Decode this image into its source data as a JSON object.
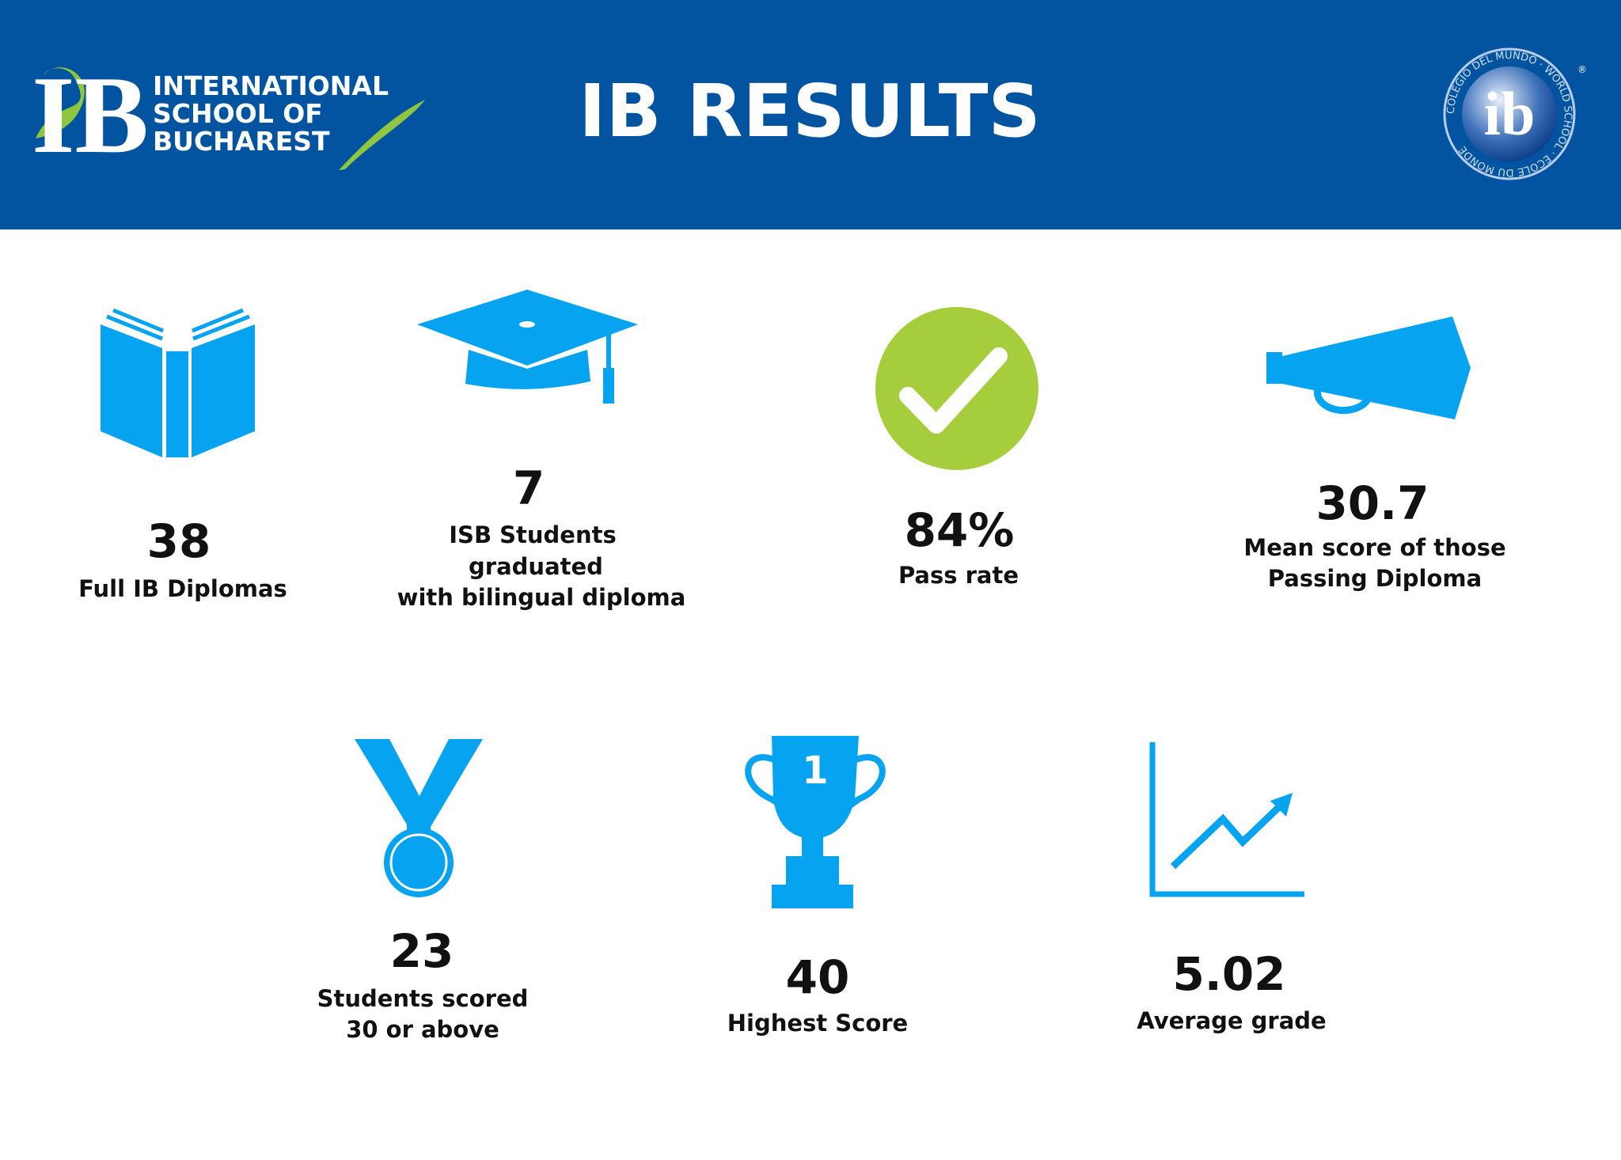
{
  "header": {
    "logo_mark": "IB",
    "school_name": [
      "INTERNATIONAL",
      "SCHOOL OF",
      "BUCHAREST"
    ],
    "title": "IB RESULTS",
    "ib_logo": {
      "mark": "ib",
      "ring": "COLEGIO DEL MUNDO · WORLD SCHOOL · ÉCOLE DU MONDE",
      "registered": "®"
    }
  },
  "stats": [
    {
      "value": "38",
      "label": [
        "Full IB Diplomas"
      ]
    },
    {
      "value": "7",
      "label": [
        "ISB Students",
        "graduated",
        "with bilingual diploma"
      ]
    },
    {
      "value": "84%",
      "label": [
        "Pass rate"
      ]
    },
    {
      "value": "30.7",
      "label": [
        "Mean score of those",
        "Passing Diploma"
      ]
    },
    {
      "value": "23",
      "label": [
        "Students scored",
        "30 or above"
      ]
    },
    {
      "value": "40",
      "label": [
        "Highest Score"
      ],
      "icon_text": "1"
    },
    {
      "value": "5.02",
      "label": [
        "Average grade"
      ]
    }
  ]
}
